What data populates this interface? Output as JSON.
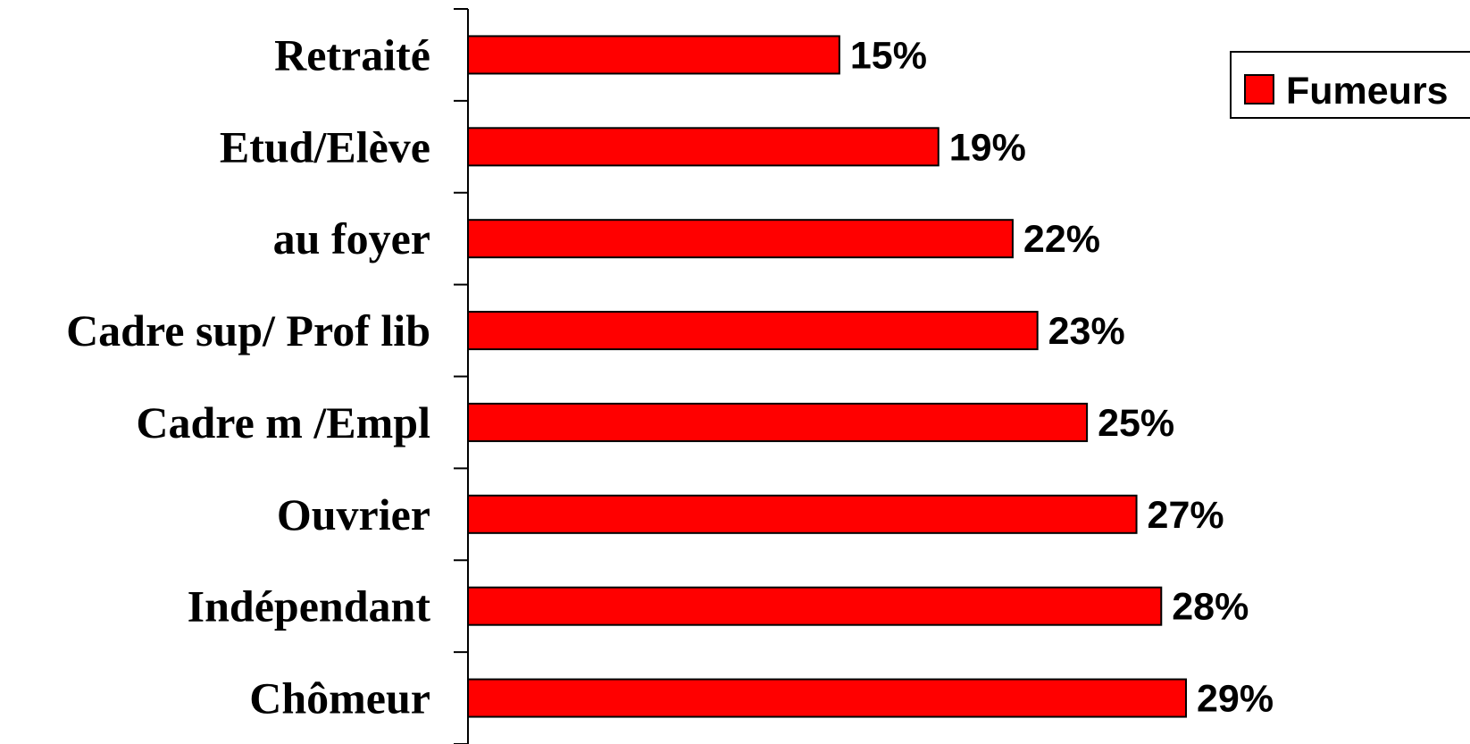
{
  "chart_data": {
    "type": "bar",
    "orientation": "horizontal",
    "categories": [
      "Retraité",
      "Etud/Elève",
      "au foyer",
      "Cadre sup/ Prof lib",
      "Cadre m /Empl",
      "Ouvrier",
      "Indépendant",
      "Chômeur"
    ],
    "series": [
      {
        "name": "Fumeurs",
        "values": [
          15,
          19,
          22,
          23,
          25,
          27,
          28,
          29
        ],
        "labels": [
          "15%",
          "19%",
          "22%",
          "23%",
          "25%",
          "27%",
          "28%",
          "29%"
        ],
        "color": "#ff0000"
      }
    ],
    "value_axis": {
      "min": 0,
      "max": 29,
      "unit": "%",
      "visible": false
    },
    "grid": false,
    "legend": {
      "position": "top-right",
      "entries": [
        "Fumeurs"
      ]
    }
  }
}
